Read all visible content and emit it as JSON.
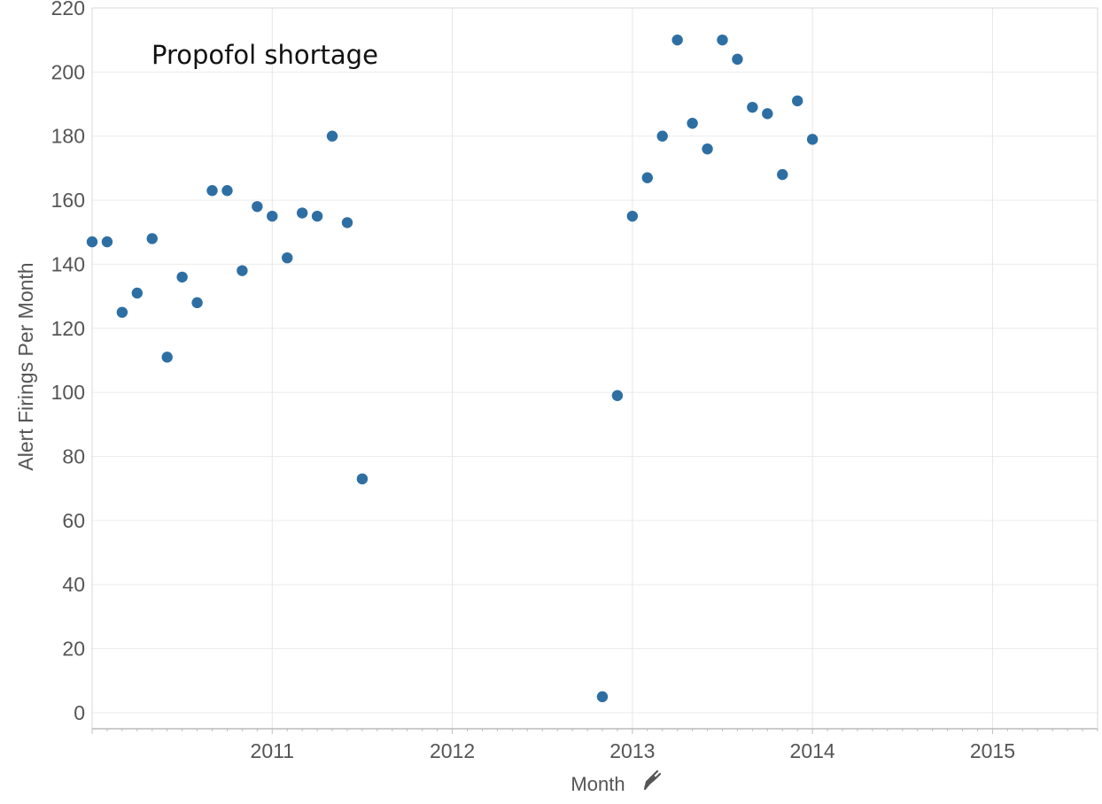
{
  "chart_data": {
    "type": "scatter",
    "title": "",
    "annotation": "Propofol shortage",
    "xlabel": "Month",
    "xlabel_icon": "pin-icon",
    "ylabel": "Alert Firings Per Month",
    "xlim": [
      "2010-01",
      "2015-08"
    ],
    "ylim": [
      -5,
      220
    ],
    "x_ticks": [
      "2011",
      "2012",
      "2013",
      "2014",
      "2015"
    ],
    "y_ticks": [
      0,
      20,
      40,
      60,
      80,
      100,
      120,
      140,
      160,
      180,
      200,
      220
    ],
    "grid": true,
    "legend": "none",
    "marker_color": "#2e6fa3",
    "points": [
      {
        "x": "2010-01",
        "y": 147
      },
      {
        "x": "2010-02",
        "y": 147
      },
      {
        "x": "2010-03",
        "y": 125
      },
      {
        "x": "2010-04",
        "y": 131
      },
      {
        "x": "2010-05",
        "y": 148
      },
      {
        "x": "2010-06",
        "y": 111
      },
      {
        "x": "2010-07",
        "y": 136
      },
      {
        "x": "2010-08",
        "y": 128
      },
      {
        "x": "2010-09",
        "y": 163
      },
      {
        "x": "2010-10",
        "y": 163
      },
      {
        "x": "2010-11",
        "y": 138
      },
      {
        "x": "2010-12",
        "y": 158
      },
      {
        "x": "2011-01",
        "y": 155
      },
      {
        "x": "2011-02",
        "y": 142
      },
      {
        "x": "2011-03",
        "y": 156
      },
      {
        "x": "2011-04",
        "y": 155
      },
      {
        "x": "2011-05",
        "y": 180
      },
      {
        "x": "2011-06",
        "y": 153
      },
      {
        "x": "2011-07",
        "y": 73
      },
      {
        "x": "2012-11",
        "y": 5
      },
      {
        "x": "2012-12",
        "y": 99
      },
      {
        "x": "2013-01",
        "y": 155
      },
      {
        "x": "2013-02",
        "y": 167
      },
      {
        "x": "2013-03",
        "y": 180
      },
      {
        "x": "2013-04",
        "y": 210
      },
      {
        "x": "2013-05",
        "y": 184
      },
      {
        "x": "2013-06",
        "y": 176
      },
      {
        "x": "2013-07",
        "y": 210
      },
      {
        "x": "2013-08",
        "y": 204
      },
      {
        "x": "2013-09",
        "y": 189
      },
      {
        "x": "2013-10",
        "y": 187
      },
      {
        "x": "2013-11",
        "y": 168
      },
      {
        "x": "2013-12",
        "y": 191
      },
      {
        "x": "2014-01",
        "y": 179
      }
    ]
  }
}
